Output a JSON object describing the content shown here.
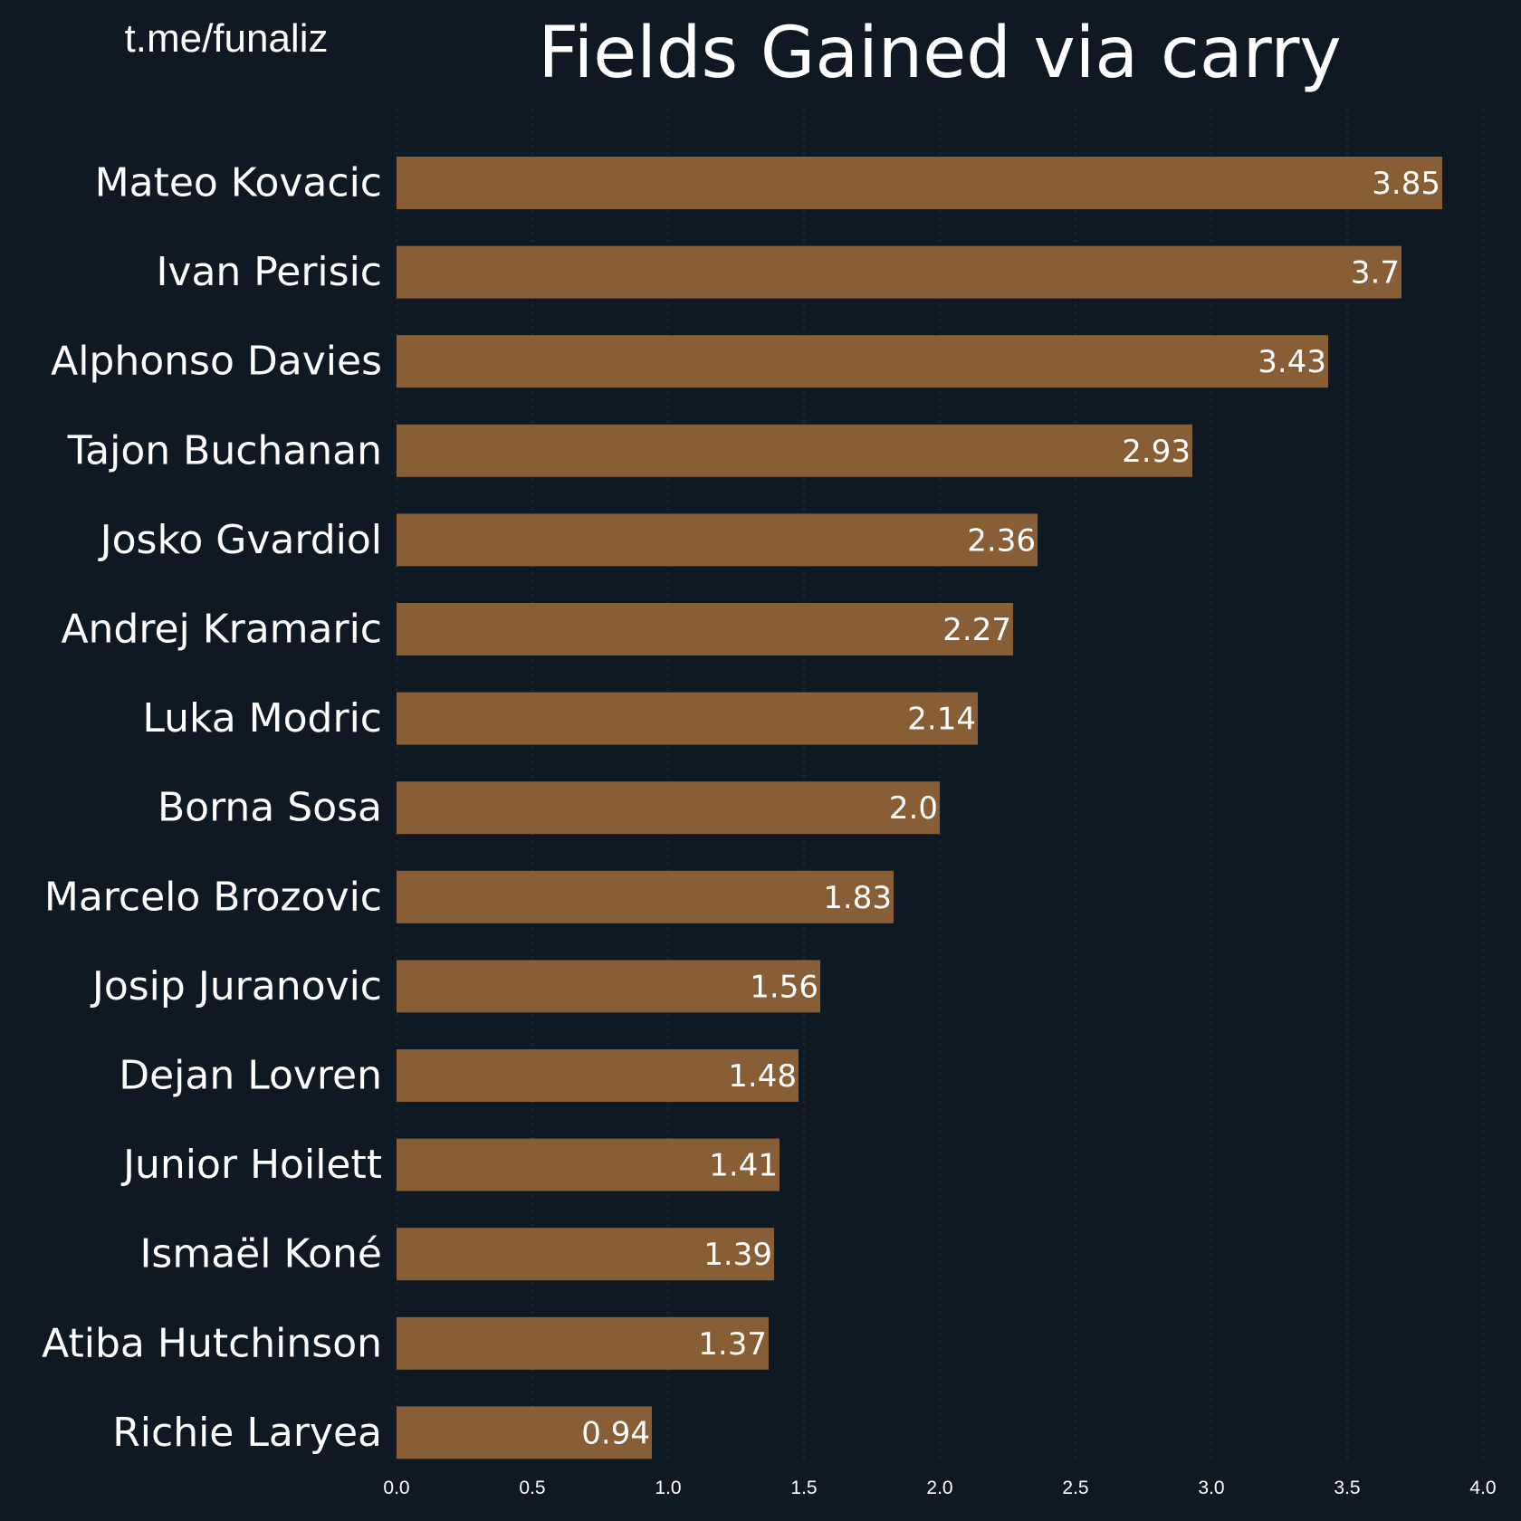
{
  "handle": "t.me/funaliz",
  "chart_data": {
    "type": "bar",
    "orientation": "horizontal",
    "title": "Fields Gained via carry",
    "xlabel": "",
    "ylabel": "",
    "categories": [
      "Mateo Kovacic",
      "Ivan Perisic",
      "Alphonso Davies",
      "Tajon Buchanan",
      "Josko Gvardiol",
      "Andrej Kramaric",
      "Luka Modric",
      "Borna Sosa",
      "Marcelo Brozovic",
      "Josip Juranovic",
      "Dejan Lovren",
      "Junior Hoilett",
      "Ismaël Koné",
      "Atiba Hutchinson",
      "Richie Laryea"
    ],
    "values": [
      3.85,
      3.7,
      3.43,
      2.93,
      2.36,
      2.27,
      2.14,
      2.0,
      1.83,
      1.56,
      1.48,
      1.41,
      1.39,
      1.37,
      0.94
    ],
    "value_labels": [
      "3.85",
      "3.7",
      "3.43",
      "2.93",
      "2.36",
      "2.27",
      "2.14",
      "2.0",
      "1.83",
      "1.56",
      "1.48",
      "1.41",
      "1.39",
      "1.37",
      "0.94"
    ],
    "xlim": [
      0,
      4.0
    ],
    "xticks": [
      "0.0",
      "0.5",
      "1.0",
      "1.5",
      "2.0",
      "2.5",
      "3.0",
      "3.5",
      "4.0"
    ],
    "grid": true,
    "legend": "none",
    "colors": {
      "background": "#0f1923",
      "bar": "#885e37",
      "text": "#ffffff",
      "grid": "#2a3440"
    }
  }
}
